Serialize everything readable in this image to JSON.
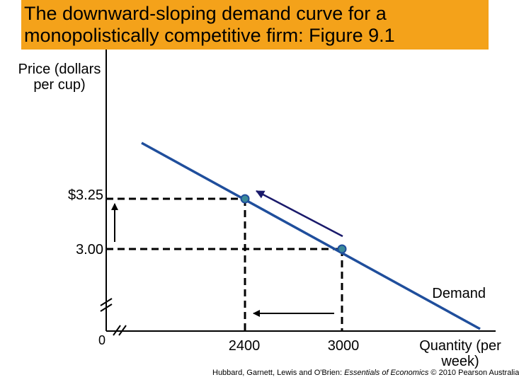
{
  "header": {
    "title": "The downward-sloping demand curve for a monopolistically competitive firm: Figure 9.1",
    "background_color": "#f4a21a"
  },
  "diagram": {
    "y_axis_label": "Price (dollars per cup)",
    "x_axis_label": "Quantity (per week)",
    "origin_label": "0",
    "price_ticks": [
      "$3.25",
      "3.00"
    ],
    "quantity_ticks": [
      "2400",
      "3000"
    ],
    "curve_label": "Demand",
    "curve_color": "#1f4e9c",
    "point_color": "#3b8a99",
    "arrow_color": "#1a1a6b"
  },
  "footer": {
    "credit_authors": "Hubbard, Garnett, Lewis and O'Brien: ",
    "credit_book": "Essentials of Economics",
    "credit_rest": " © 2010 Pearson Australia"
  }
}
